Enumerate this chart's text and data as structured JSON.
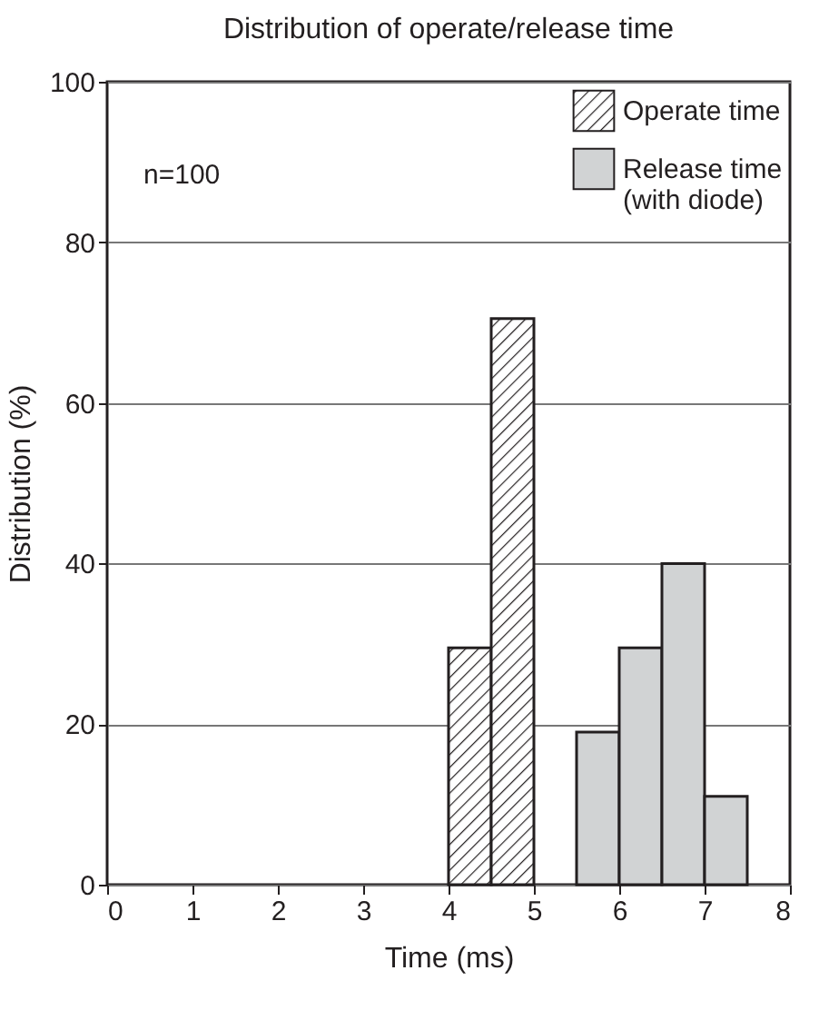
{
  "chart_data": {
    "type": "histogram",
    "title": "Distribution of operate/release time",
    "xlabel": "Time (ms)",
    "ylabel": "Distribution (%)",
    "bins": [
      4,
      4.5,
      5,
      5.5,
      6,
      6.5,
      7,
      7.5
    ],
    "series": [
      {
        "name": "Operate time",
        "color": "#231f20",
        "values": [
          29.5,
          70.5,
          null,
          null,
          null,
          null,
          null
        ]
      },
      {
        "name": "Release time\n(with diode)",
        "color": "#d1d3d4",
        "values": [
          null,
          null,
          null,
          19,
          29.5,
          40,
          11
        ]
      }
    ],
    "xlim": [
      0,
      8
    ],
    "xticks": [
      0,
      1,
      2,
      3,
      4,
      5,
      6,
      7,
      8
    ],
    "ylim": [
      0,
      100
    ],
    "yticks": [
      0,
      20,
      40,
      60,
      80,
      100
    ],
    "grid": "y",
    "legend": "top right",
    "annotations": [
      "n=100"
    ]
  }
}
